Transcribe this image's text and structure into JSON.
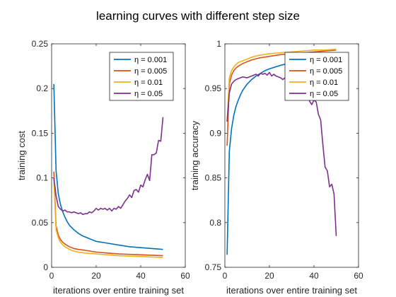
{
  "figure_title": "learning curves with different step size",
  "chart_data": [
    {
      "type": "line",
      "xlabel": "iterations over entire training set",
      "ylabel": "training cost",
      "xlim": [
        0,
        60
      ],
      "ylim": [
        0,
        0.25
      ],
      "xticks": [
        0,
        20,
        40,
        60
      ],
      "yticks": [
        0,
        0.05,
        0.1,
        0.15,
        0.2,
        0.25
      ],
      "xtick_labels": [
        "0",
        "20",
        "40",
        "60"
      ],
      "ytick_labels": [
        "0",
        "0.05",
        "0.1",
        "0.15",
        "0.2",
        "0.25"
      ],
      "grid": false,
      "legend_position": "top-right",
      "series": [
        {
          "name": "η = 0.001",
          "color": "#0072BD",
          "x": [
            1,
            2,
            3,
            4,
            5,
            6,
            7,
            8,
            10,
            12,
            14,
            16,
            18,
            20,
            25,
            30,
            35,
            40,
            45,
            50
          ],
          "y": [
            0.205,
            0.108,
            0.082,
            0.07,
            0.062,
            0.056,
            0.051,
            0.047,
            0.042,
            0.038,
            0.035,
            0.033,
            0.031,
            0.029,
            0.027,
            0.025,
            0.023,
            0.022,
            0.021,
            0.02
          ]
        },
        {
          "name": "η = 0.005",
          "color": "#D95319",
          "x": [
            1,
            2,
            3,
            4,
            5,
            6,
            8,
            10,
            12,
            15,
            20,
            25,
            30,
            35,
            40,
            45,
            50
          ],
          "y": [
            0.107,
            0.046,
            0.036,
            0.031,
            0.028,
            0.026,
            0.023,
            0.021,
            0.02,
            0.019,
            0.017,
            0.016,
            0.015,
            0.0145,
            0.014,
            0.0135,
            0.013
          ]
        },
        {
          "name": "η = 0.01",
          "color": "#EDB120",
          "x": [
            1,
            2,
            3,
            4,
            5,
            6,
            8,
            10,
            12,
            15,
            20,
            25,
            30,
            35,
            40,
            45,
            50
          ],
          "y": [
            0.098,
            0.042,
            0.033,
            0.028,
            0.025,
            0.023,
            0.02,
            0.018,
            0.017,
            0.016,
            0.015,
            0.014,
            0.013,
            0.0125,
            0.012,
            0.0115,
            0.011
          ]
        },
        {
          "name": "η = 0.05",
          "color": "#7E2F8E",
          "x": [
            1,
            2,
            3,
            4,
            5,
            6,
            7,
            8,
            9,
            10,
            11,
            12,
            13,
            14,
            15,
            16,
            17,
            18,
            19,
            20,
            21,
            22,
            23,
            24,
            25,
            26,
            27,
            28,
            29,
            30,
            31,
            32,
            33,
            34,
            35,
            36,
            37,
            38,
            39,
            40,
            41,
            42,
            43,
            44,
            45,
            46,
            47,
            48,
            49,
            50
          ],
          "y": [
            0.1,
            0.08,
            0.068,
            0.065,
            0.063,
            0.064,
            0.062,
            0.062,
            0.061,
            0.062,
            0.061,
            0.06,
            0.061,
            0.059,
            0.06,
            0.06,
            0.062,
            0.061,
            0.063,
            0.066,
            0.064,
            0.066,
            0.065,
            0.066,
            0.064,
            0.066,
            0.063,
            0.066,
            0.065,
            0.068,
            0.066,
            0.07,
            0.074,
            0.077,
            0.081,
            0.078,
            0.086,
            0.087,
            0.084,
            0.092,
            0.09,
            0.098,
            0.104,
            0.097,
            0.126,
            0.126,
            0.128,
            0.142,
            0.141,
            0.168
          ]
        }
      ]
    },
    {
      "type": "line",
      "xlabel": "iterations over entire training set",
      "ylabel": "training accuracy",
      "xlim": [
        0,
        60
      ],
      "ylim": [
        0.75,
        1
      ],
      "xticks": [
        0,
        20,
        40,
        60
      ],
      "yticks": [
        0.75,
        0.8,
        0.85,
        0.9,
        0.95,
        1
      ],
      "xtick_labels": [
        "0",
        "20",
        "40",
        "60"
      ],
      "ytick_labels": [
        "0.75",
        "0.8",
        "0.85",
        "0.9",
        "0.95",
        "1"
      ],
      "grid": false,
      "legend_position": "top-right",
      "series": [
        {
          "name": "η = 0.001",
          "color": "#0072BD",
          "x": [
            1,
            2,
            3,
            4,
            5,
            6,
            7,
            8,
            10,
            12,
            14,
            16,
            18,
            20,
            25,
            30,
            35,
            40,
            45,
            50
          ],
          "y": [
            0.764,
            0.88,
            0.905,
            0.92,
            0.93,
            0.937,
            0.943,
            0.948,
            0.955,
            0.96,
            0.964,
            0.967,
            0.97,
            0.972,
            0.976,
            0.979,
            0.981,
            0.983,
            0.984,
            0.985
          ]
        },
        {
          "name": "η = 0.005",
          "color": "#D95319",
          "x": [
            1,
            2,
            3,
            4,
            5,
            6,
            8,
            10,
            12,
            15,
            20,
            25,
            30,
            35,
            40,
            45,
            50
          ],
          "y": [
            0.886,
            0.955,
            0.965,
            0.97,
            0.973,
            0.975,
            0.978,
            0.98,
            0.982,
            0.984,
            0.986,
            0.988,
            0.989,
            0.99,
            0.991,
            0.992,
            0.993
          ]
        },
        {
          "name": "η = 0.01",
          "color": "#EDB120",
          "x": [
            1,
            2,
            3,
            4,
            5,
            6,
            8,
            10,
            12,
            15,
            20,
            25,
            30,
            35,
            40,
            45,
            50
          ],
          "y": [
            0.913,
            0.962,
            0.97,
            0.974,
            0.977,
            0.979,
            0.981,
            0.983,
            0.985,
            0.987,
            0.989,
            0.99,
            0.991,
            0.992,
            0.993,
            0.993,
            0.994
          ]
        },
        {
          "name": "η = 0.05",
          "color": "#7E2F8E",
          "x": [
            1,
            2,
            3,
            4,
            5,
            6,
            7,
            8,
            10,
            12,
            14,
            15,
            16,
            17,
            18,
            19,
            20,
            21,
            22,
            23,
            24,
            25,
            26,
            27,
            28,
            29,
            30,
            31,
            32,
            33,
            34,
            35,
            36,
            37,
            38,
            39,
            40,
            41,
            42,
            43,
            44,
            45,
            46,
            47,
            48,
            49,
            50
          ],
          "y": [
            0.913,
            0.945,
            0.955,
            0.958,
            0.96,
            0.961,
            0.962,
            0.963,
            0.962,
            0.964,
            0.966,
            0.964,
            0.967,
            0.966,
            0.967,
            0.965,
            0.968,
            0.964,
            0.966,
            0.964,
            0.963,
            0.962,
            0.96,
            0.962,
            0.958,
            0.961,
            0.956,
            0.957,
            0.953,
            0.95,
            0.953,
            0.944,
            0.946,
            0.942,
            0.936,
            0.932,
            0.937,
            0.935,
            0.921,
            0.915,
            0.887,
            0.862,
            0.858,
            0.84,
            0.843,
            0.832,
            0.785
          ]
        }
      ]
    }
  ]
}
